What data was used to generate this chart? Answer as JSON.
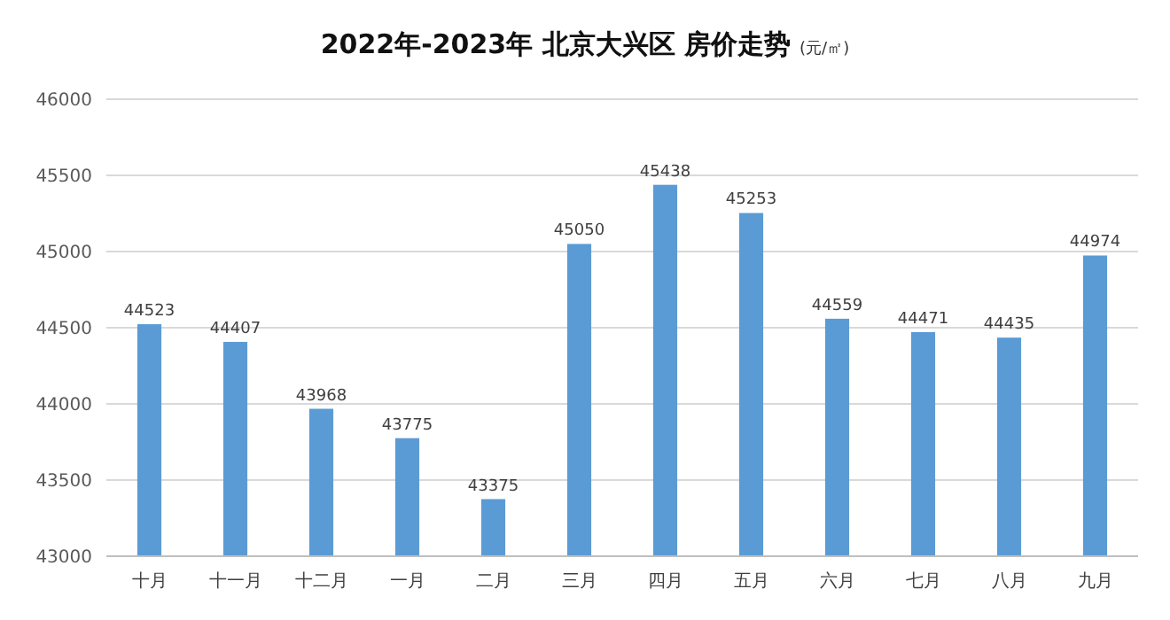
{
  "chart_data": {
    "type": "bar",
    "title": "2022年-2023年 北京大兴区 房价走势",
    "subtitle": "(元/㎡)",
    "categories": [
      "十月",
      "十一月",
      "十二月",
      "一月",
      "二月",
      "三月",
      "四月",
      "五月",
      "六月",
      "七月",
      "八月",
      "九月"
    ],
    "values": [
      44523,
      44407,
      43968,
      43775,
      43375,
      45050,
      45438,
      45253,
      44559,
      44471,
      44435,
      44974
    ],
    "color": "#5b9bd5",
    "ylim": [
      43000,
      46000
    ],
    "yticks": [
      43000,
      43500,
      44000,
      44500,
      45000,
      45500,
      46000
    ],
    "grid": "y",
    "data_labels": true
  }
}
